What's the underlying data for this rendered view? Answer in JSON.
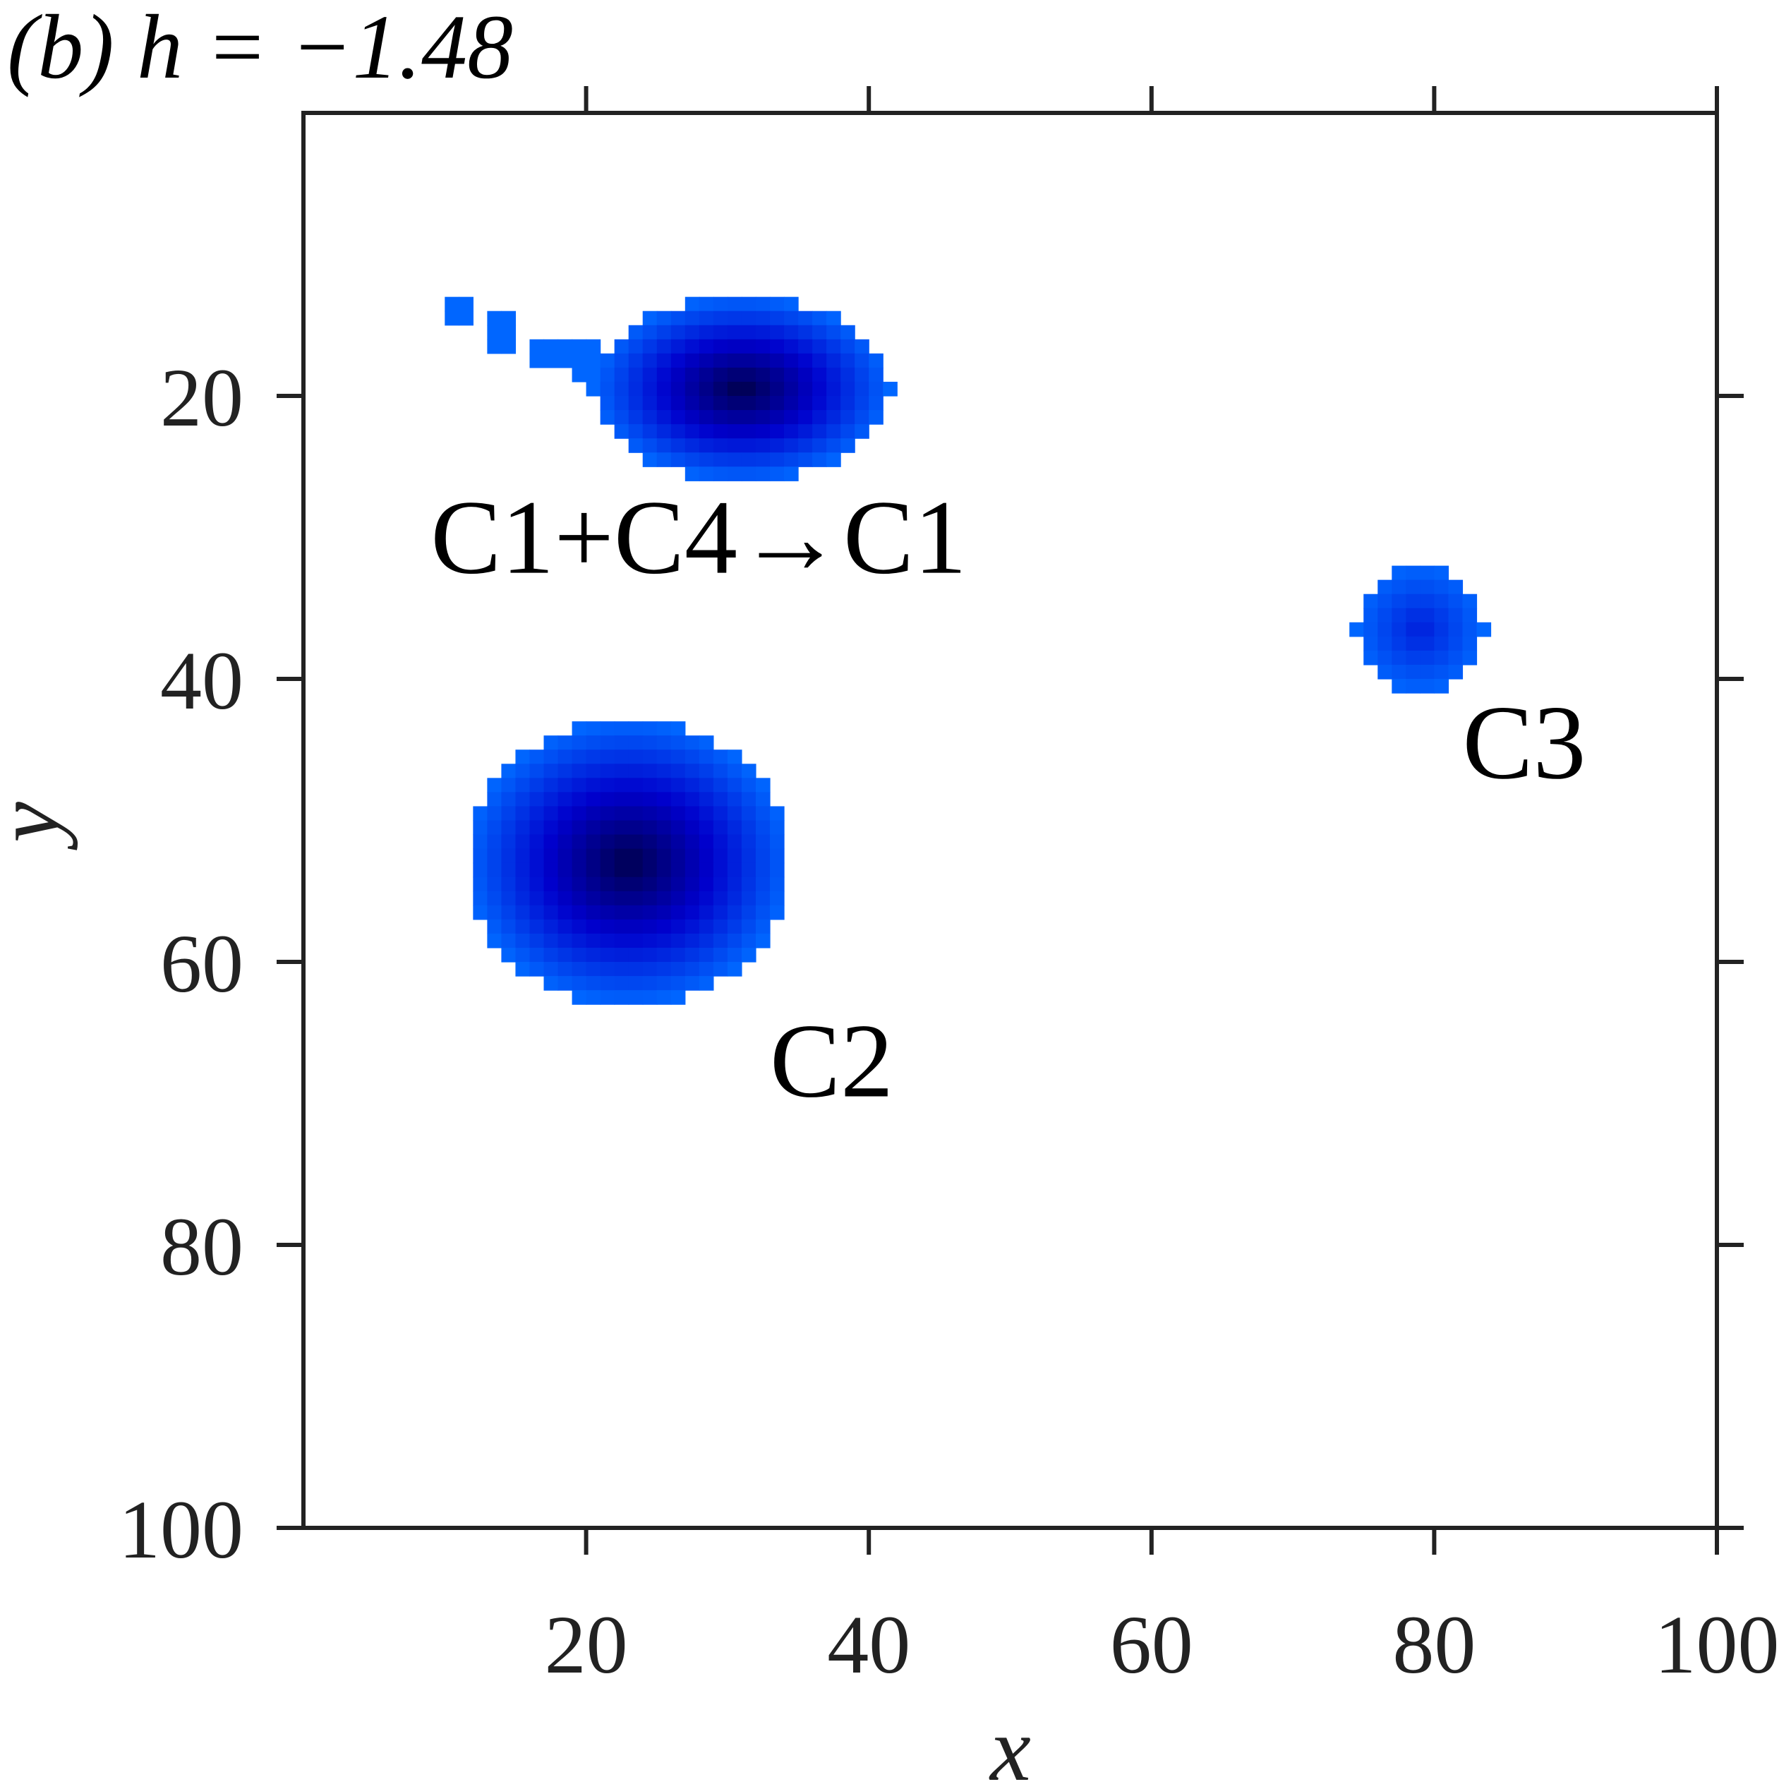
{
  "chart_data": {
    "type": "heatmap",
    "title": "(b) h = −1.48",
    "xlabel": "x",
    "ylabel": "y",
    "xlim": [
      0,
      100
    ],
    "ylim": [
      0,
      100
    ],
    "y_axis_inverted": true,
    "x_ticks": [
      "20",
      "40",
      "60",
      "80",
      "100"
    ],
    "y_ticks": [
      "20",
      "40",
      "60",
      "80",
      "100"
    ],
    "grid": false,
    "colormap": [
      "#0066ff",
      "#0000cc",
      "#00004d"
    ],
    "background": "#ffffff",
    "clusters": [
      {
        "label": "C1+C4→C1",
        "center": [
          31,
          19.5
        ],
        "core_radius": [
          10.5,
          6.5
        ],
        "tail": [
          [
            11,
            14
          ],
          [
            14,
            15.5
          ],
          [
            17.5,
            17
          ],
          [
            20,
            17.5
          ]
        ],
        "peak": 1.0
      },
      {
        "label": "C2",
        "center": [
          23,
          53
        ],
        "core_radius": [
          11.5,
          10
        ],
        "peak": 1.0
      },
      {
        "label": "C3",
        "center": [
          79,
          36.5
        ],
        "core_radius": [
          4.5,
          4.5
        ],
        "peak": 0.35
      }
    ]
  }
}
